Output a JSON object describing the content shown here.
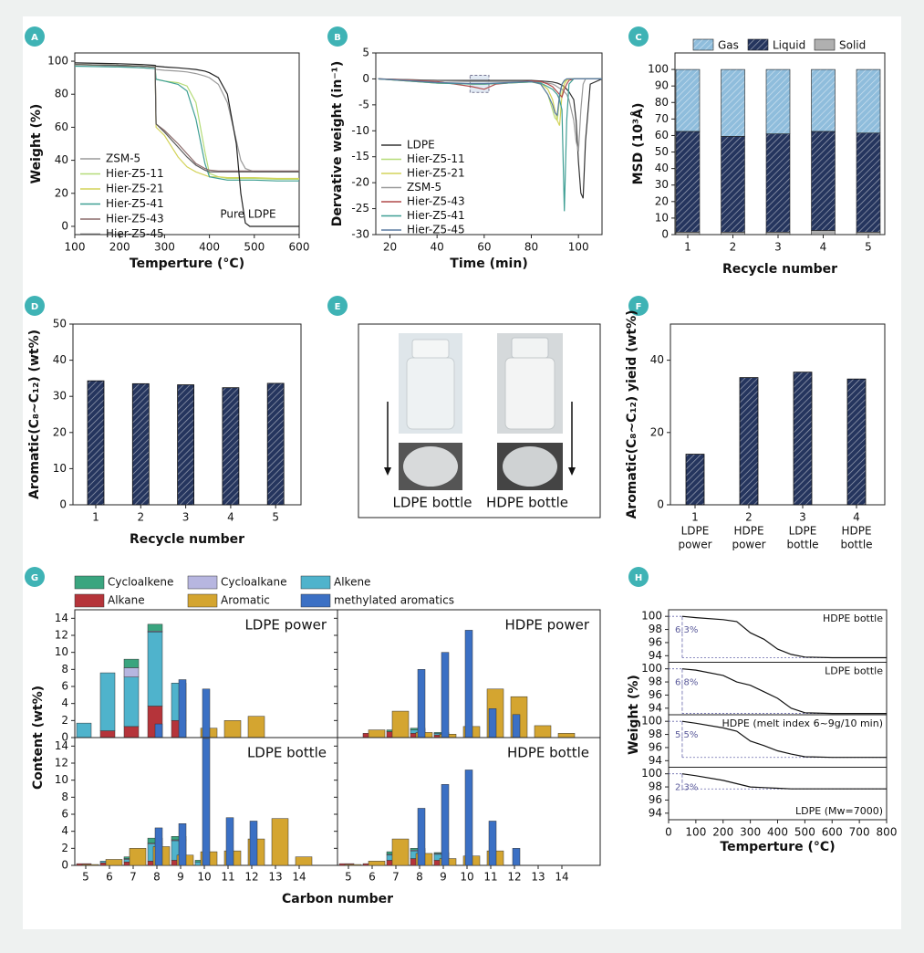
{
  "chart_data": [
    {
      "label": "A",
      "type": "line",
      "xlabel": "Temperture (°C)",
      "ylabel": "Weight (%)",
      "x": [
        100,
        200,
        250,
        279,
        281,
        300,
        330,
        350,
        370,
        390,
        400,
        420,
        440,
        460,
        470,
        480,
        490,
        500,
        550,
        600
      ],
      "xlim": [
        100,
        600
      ],
      "xticks": [
        100,
        200,
        300,
        400,
        500,
        600
      ],
      "ylim": [
        -5,
        105
      ],
      "yticks": [
        0,
        20,
        40,
        60,
        80,
        100
      ],
      "series": [
        {
          "name": "ZSM-5",
          "color": "#9a9a9a",
          "values": [
            98,
            97,
            96,
            95.5,
            95,
            94.5,
            94,
            93.5,
            92.5,
            91,
            90,
            86,
            75,
            52,
            40,
            35,
            34,
            33,
            33,
            33
          ]
        },
        {
          "name": "Hier-Z5-11",
          "color": "#b5dc78",
          "values": [
            98,
            97.5,
            97,
            96.5,
            89,
            88,
            87,
            85,
            75,
            45,
            32,
            30,
            29,
            29,
            29,
            29,
            29,
            29,
            28.5,
            28.5
          ]
        },
        {
          "name": "Hier-Z5-21",
          "color": "#d3d35a",
          "values": [
            98,
            97.5,
            97,
            96.5,
            60,
            55,
            42,
            36,
            33,
            31,
            30,
            30,
            29.5,
            29.5,
            29.5,
            29.5,
            29.5,
            29.5,
            29,
            29
          ]
        },
        {
          "name": "Hier-Z5-41",
          "color": "#3f9f94",
          "values": [
            97,
            96.5,
            96,
            95.5,
            89,
            88,
            86,
            82,
            65,
            38,
            30,
            29,
            28,
            28,
            28,
            28,
            28,
            28,
            27.5,
            27.5
          ]
        },
        {
          "name": "Hier-Z5-43",
          "color": "#8a6a6a",
          "values": [
            98,
            97.5,
            97,
            96.5,
            62,
            58,
            50,
            44,
            38,
            35,
            34,
            33.5,
            33.5,
            33.5,
            33.5,
            33.5,
            33.5,
            33.5,
            33.5,
            33.5
          ]
        },
        {
          "name": "Hier-Z5-45",
          "color": "#5a5a5a",
          "values": [
            98,
            97.5,
            97,
            96.5,
            62,
            57,
            48,
            42,
            37,
            34,
            33,
            33,
            33,
            33,
            33,
            33,
            33,
            33,
            33,
            33
          ]
        },
        {
          "color": "#222222",
          "values": [
            99,
            98.5,
            98,
            97.5,
            97,
            96.5,
            96,
            95.5,
            95,
            94,
            93,
            90,
            80,
            50,
            20,
            2,
            0,
            0,
            0,
            0
          ]
        }
      ],
      "annotations": [
        "Pure LDPE"
      ]
    },
    {
      "label": "B",
      "type": "line",
      "xlabel": "Time (min)",
      "ylabel": "Dervative weight (in⁻¹)",
      "x": [
        15,
        40,
        55,
        60,
        65,
        80,
        84,
        87,
        89,
        90,
        91,
        92,
        93,
        94,
        95,
        96,
        98,
        99,
        100,
        101,
        102,
        103,
        105,
        110
      ],
      "xlim": [
        14,
        110
      ],
      "xticks": [
        20,
        40,
        60,
        80,
        100
      ],
      "ylim": [
        -30,
        5
      ],
      "yticks": [
        -30,
        -25,
        -20,
        -15,
        -10,
        -5,
        0,
        5
      ],
      "series": [
        {
          "name": "LDPE",
          "color": "#333333",
          "values": [
            0,
            -0.3,
            -0.3,
            -0.3,
            -0.3,
            -0.3,
            -0.4,
            -0.5,
            -0.6,
            -0.7,
            -0.8,
            -1,
            -1.2,
            -1.5,
            -2,
            -2.5,
            -4,
            -8,
            -16,
            -22,
            -23,
            -12,
            -1,
            0
          ]
        },
        {
          "name": "Hier-Z5-11",
          "color": "#b5dc78",
          "values": [
            0,
            -0.8,
            -1,
            -1,
            -0.9,
            -0.6,
            -1,
            -3,
            -6,
            -7.5,
            -8,
            -4,
            -1,
            -0.5,
            -0.2,
            0,
            0,
            0,
            0,
            0,
            0,
            0,
            0,
            0
          ]
        },
        {
          "name": "Hier-Z5-21",
          "color": "#d3d35a",
          "values": [
            0,
            -0.8,
            -1,
            -1,
            -0.9,
            -0.6,
            -0.8,
            -2,
            -4,
            -6,
            -8,
            -9,
            -3,
            -1,
            -0.3,
            0,
            0,
            0,
            0,
            0,
            0,
            0,
            0,
            0
          ]
        },
        {
          "name": "ZSM-5",
          "color": "#9a9a9a",
          "values": [
            0,
            -0.4,
            -0.5,
            -0.5,
            -0.5,
            -0.5,
            -0.6,
            -0.8,
            -1,
            -1.2,
            -1.5,
            -1.8,
            -2,
            -2.5,
            -3,
            -4,
            -8,
            -12,
            -14,
            -6,
            -1,
            0,
            0,
            0
          ]
        },
        {
          "name": "Hier-Z5-43",
          "color": "#b04a4a",
          "values": [
            0,
            -0.5,
            -1.5,
            -2,
            -1,
            -0.4,
            -0.5,
            -1,
            -1.5,
            -2,
            -2.5,
            -3,
            -3.5,
            -2,
            -1,
            -0.3,
            0,
            0,
            0,
            0,
            0,
            0,
            0,
            0
          ]
        },
        {
          "name": "Hier-Z5-41",
          "color": "#3f9f94",
          "values": [
            0,
            -0.8,
            -1,
            -1,
            -0.9,
            -0.6,
            -0.8,
            -1.5,
            -2,
            -2.5,
            -3,
            -4,
            -6,
            -25.5,
            -8,
            -1,
            0,
            0,
            0,
            0,
            0,
            0,
            0,
            0
          ]
        },
        {
          "name": "Hier-Z5-45",
          "color": "#5a7aa0",
          "values": [
            0,
            -0.7,
            -0.9,
            -0.9,
            -0.8,
            -0.5,
            -1,
            -3,
            -5,
            -6.5,
            -7,
            -3,
            -1,
            -0.3,
            0,
            0,
            0,
            0,
            0,
            0,
            0,
            0,
            0,
            0
          ]
        }
      ]
    },
    {
      "label": "C",
      "type": "stacked-bar",
      "xlabel": "Recycle number",
      "ylabel": "MSD (10³Å)",
      "categories": [
        1,
        2,
        3,
        4,
        5
      ],
      "ylim": [
        0,
        110
      ],
      "yticks": [
        0,
        10,
        20,
        30,
        40,
        50,
        60,
        70,
        80,
        90,
        100
      ],
      "series": [
        {
          "name": "Solid",
          "color": "#b0b0b0",
          "hatch": false,
          "values": [
            1.5,
            1.5,
            1.5,
            2.5,
            1.5
          ]
        },
        {
          "name": "Liquid",
          "color": "#25355e",
          "hatch": true,
          "values": [
            61,
            58,
            59.5,
            60,
            60
          ]
        },
        {
          "name": "Gas",
          "color": "#8fbddc",
          "hatch": true,
          "values": [
            37.5,
            40.5,
            39,
            37.5,
            38.5
          ]
        }
      ]
    },
    {
      "label": "D",
      "type": "bar",
      "xlabel": "Recycle number",
      "ylabel": "Aromatic(C₈~C₁₂) (wt%)",
      "categories": [
        1,
        2,
        3,
        4,
        5
      ],
      "values": [
        34.3,
        33.5,
        33.2,
        32.4,
        33.6
      ],
      "color": "#25355e",
      "hatch": true,
      "ylim": [
        0,
        50
      ],
      "yticks": [
        0,
        10,
        20,
        30,
        40,
        50
      ]
    },
    {
      "label": "F",
      "type": "bar",
      "ylabel": "Aromatic(C₈~C₁₂) yieid (wt%)",
      "categories": [
        [
          "1",
          "LDPE",
          "power"
        ],
        [
          "2",
          "HDPE",
          "power"
        ],
        [
          "3",
          "LDPE",
          "bottle"
        ],
        [
          "4",
          "HDPE",
          "bottle"
        ]
      ],
      "values": [
        14,
        35.2,
        36.7,
        34.8
      ],
      "color": "#25355e",
      "hatch": true,
      "ylim": [
        0,
        50
      ],
      "yticks": [
        0,
        20,
        40
      ]
    },
    {
      "label": "G",
      "type": "composition",
      "xlabel": "Carbon number",
      "ylabel": "Content (wt%)",
      "categories": [
        5,
        6,
        7,
        8,
        9,
        10,
        11,
        12,
        13,
        14
      ],
      "ylim": [
        0,
        15
      ],
      "yticks": [
        0,
        2,
        4,
        6,
        8,
        10,
        12,
        14
      ],
      "series": [
        {
          "name": "Cycloalkene",
          "color": "#3aa57f",
          "stack": true
        },
        {
          "name": "Cycloalkane",
          "color": "#b7b6e0",
          "stack": true
        },
        {
          "name": "Alkene",
          "color": "#4fb3cc",
          "stack": true
        },
        {
          "name": "Alkane",
          "color": "#b5343a",
          "stack": true
        },
        {
          "name": "Aromatic",
          "color": "#d4a530",
          "stack": false
        },
        {
          "name": "methylated aromatics",
          "color": "#3b70c4",
          "stack": false
        }
      ],
      "subplots": [
        {
          "title": "LDPE power",
          "values": [
            [
              null,
              null,
              1.0,
              0.8,
              null,
              null,
              null,
              null,
              null,
              null
            ],
            [
              null,
              null,
              1.1,
              0.1,
              null,
              null,
              null,
              null,
              null,
              null
            ],
            [
              1.7,
              6.8,
              5.8,
              8.7,
              4.4,
              null,
              null,
              null,
              null,
              null
            ],
            [
              null,
              0.8,
              1.3,
              3.7,
              2.0,
              null,
              null,
              null,
              null,
              null
            ],
            [
              null,
              null,
              null,
              null,
              null,
              1.1,
              2.0,
              2.5,
              null,
              null
            ],
            [
              null,
              null,
              null,
              1.6,
              6.8,
              5.7,
              null,
              null,
              null,
              null
            ]
          ]
        },
        {
          "title": "HDPE power",
          "values": [
            [
              null,
              null,
              0.2,
              0.2,
              0.1,
              null,
              null,
              null,
              null,
              null
            ],
            [
              null,
              null,
              null,
              null,
              null,
              null,
              null,
              null,
              null,
              null
            ],
            [
              null,
              null,
              null,
              0.4,
              0.2,
              null,
              null,
              null,
              null,
              null
            ],
            [
              null,
              0.5,
              0.7,
              0.5,
              0.3,
              null,
              null,
              null,
              null,
              null
            ],
            [
              null,
              0.9,
              3.1,
              0.6,
              0.4,
              1.3,
              5.7,
              4.8,
              1.4,
              0.5
            ],
            [
              null,
              null,
              null,
              8.0,
              10.0,
              12.6,
              3.4,
              2.7,
              null,
              null
            ]
          ]
        },
        {
          "title": "LDPE bottle",
          "values": [
            [
              null,
              null,
              0.2,
              0.6,
              0.4,
              0.2,
              null,
              null,
              null,
              null
            ],
            [
              null,
              null,
              0.1,
              0.1,
              0.1,
              null,
              null,
              null,
              null,
              null
            ],
            [
              null,
              0.2,
              0.3,
              2.0,
              2.3,
              0.4,
              null,
              null,
              null,
              null
            ],
            [
              0.2,
              0.3,
              0.4,
              0.5,
              0.6,
              null,
              null,
              null,
              null,
              null
            ],
            [
              0.1,
              0.7,
              2.0,
              2.2,
              1.2,
              1.6,
              1.7,
              3.1,
              5.5,
              1.0
            ],
            [
              null,
              null,
              null,
              4.4,
              4.9,
              14.9,
              5.6,
              5.2,
              null,
              null
            ]
          ]
        },
        {
          "title": "HDPE bottle",
          "values": [
            [
              null,
              null,
              0.3,
              0.2,
              0.1,
              null,
              null,
              null,
              null,
              null
            ],
            [
              null,
              null,
              0.1,
              0.1,
              0.1,
              null,
              null,
              null,
              null,
              null
            ],
            [
              null,
              null,
              0.6,
              0.9,
              0.7,
              null,
              null,
              null,
              null,
              null
            ],
            [
              0.2,
              0.2,
              0.6,
              0.8,
              0.6,
              null,
              null,
              null,
              null,
              null
            ],
            [
              0.1,
              0.5,
              3.1,
              1.4,
              0.8,
              1.1,
              1.7,
              null,
              null,
              null
            ],
            [
              null,
              null,
              null,
              6.7,
              9.5,
              11.2,
              5.2,
              2.0,
              null,
              null
            ]
          ]
        }
      ]
    },
    {
      "label": "H",
      "type": "tga-panels",
      "xlabel": "Temperture (°C)",
      "ylabel": "Weight (%)",
      "x": [
        50,
        100,
        200,
        250,
        300,
        350,
        400,
        450,
        500,
        600,
        800
      ],
      "xlim": [
        0,
        800
      ],
      "xticks": [
        0,
        100,
        200,
        300,
        400,
        500,
        600,
        700,
        800
      ],
      "ylim": [
        93,
        101
      ],
      "yticks": [
        94,
        96,
        98,
        100
      ],
      "color": "#111111",
      "subplots": [
        {
          "title": "HDPE bottle",
          "loss_label": "6.3%",
          "values": [
            100,
            99.8,
            99.5,
            99.2,
            97.5,
            96.5,
            95,
            94.2,
            93.8,
            93.7,
            93.7
          ]
        },
        {
          "title": "LDPE bottle",
          "loss_label": "6.8%",
          "values": [
            100,
            99.8,
            99,
            98,
            97.5,
            96.5,
            95.5,
            94,
            93.3,
            93.2,
            93.2
          ]
        },
        {
          "title": "HDPE (melt index 6~9g/10 min)",
          "loss_label": "5.5%",
          "values": [
            100,
            99.7,
            99,
            98.5,
            97,
            96.3,
            95.5,
            95,
            94.6,
            94.5,
            94.5
          ]
        },
        {
          "title": "LDPE (Mw=7000)",
          "loss_label": "2.3%",
          "values": [
            100,
            99.7,
            99,
            98.5,
            98,
            97.9,
            97.8,
            97.7,
            97.7,
            97.7,
            97.7
          ]
        }
      ]
    }
  ],
  "photo_panel": {
    "label": "E",
    "captions": [
      "LDPE bottle",
      "HDPE bottle"
    ]
  }
}
